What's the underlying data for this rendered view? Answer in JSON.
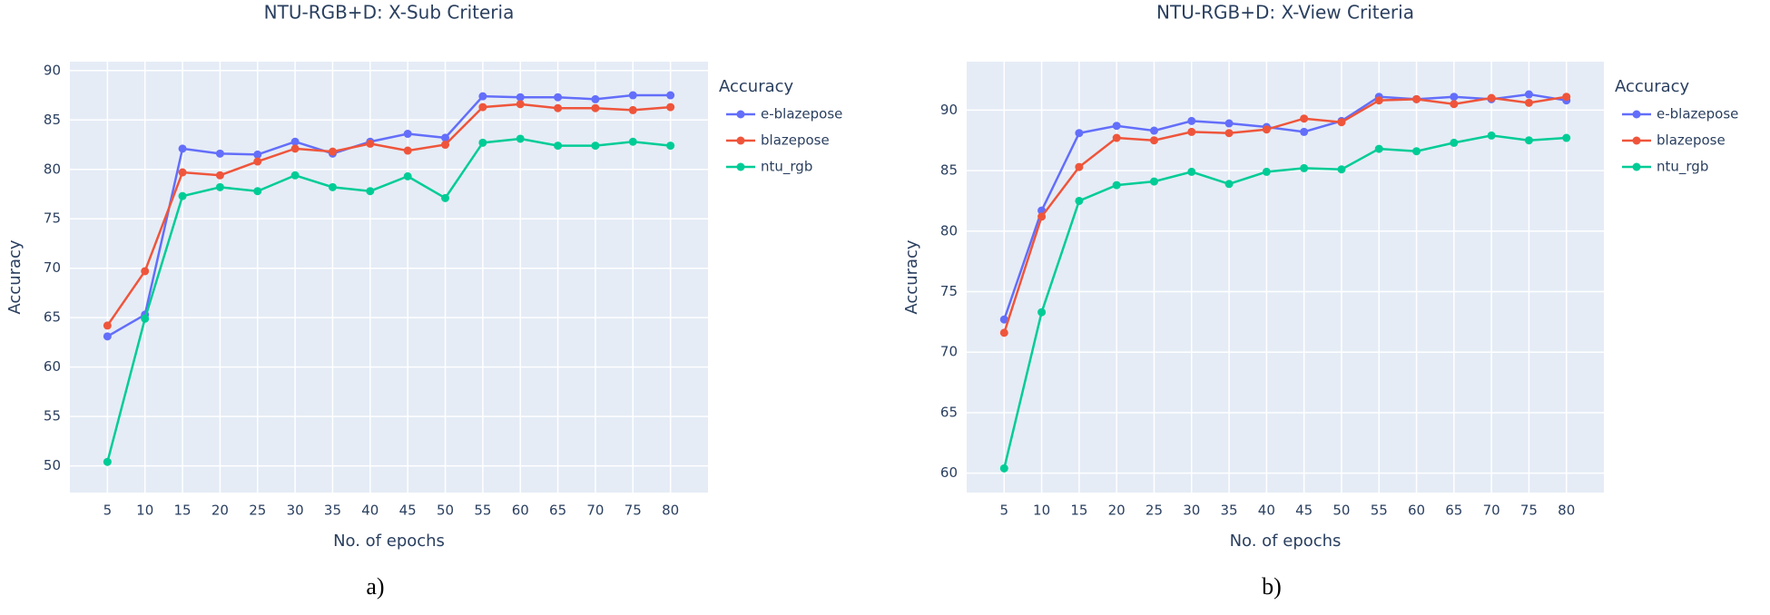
{
  "chart_data": [
    {
      "type": "line",
      "title": "NTU-RGB+D: X-Sub Criteria",
      "xlabel": "No. of epochs",
      "ylabel": "Accuracy",
      "legend_title": "Accuracy",
      "caption": "a)",
      "x": [
        5,
        10,
        15,
        20,
        25,
        30,
        35,
        40,
        45,
        50,
        55,
        60,
        65,
        70,
        75,
        80
      ],
      "xlim": [
        0,
        85
      ],
      "xticks": [
        5,
        10,
        15,
        20,
        25,
        30,
        35,
        40,
        45,
        50,
        55,
        60,
        65,
        70,
        75,
        80
      ],
      "ylim": [
        47.3,
        90.9
      ],
      "yticks": [
        50,
        55,
        60,
        65,
        70,
        75,
        80,
        85,
        90
      ],
      "grid": true,
      "series": [
        {
          "name": "e-blazepose",
          "color": "#636efa",
          "values": [
            63.1,
            65.3,
            82.1,
            81.6,
            81.5,
            82.8,
            81.6,
            82.8,
            83.6,
            83.2,
            87.4,
            87.3,
            87.3,
            87.1,
            87.5,
            87.5
          ]
        },
        {
          "name": "blazepose",
          "color": "#ef553b",
          "values": [
            64.2,
            69.7,
            79.7,
            79.4,
            80.8,
            82.1,
            81.8,
            82.6,
            81.9,
            82.5,
            86.3,
            86.6,
            86.2,
            86.2,
            86.0,
            86.3
          ]
        },
        {
          "name": "ntu_rgb",
          "color": "#00cc96",
          "values": [
            50.4,
            64.9,
            77.3,
            78.2,
            77.8,
            79.4,
            78.2,
            77.8,
            79.3,
            77.1,
            82.7,
            83.1,
            82.4,
            82.4,
            82.8,
            82.4
          ]
        }
      ]
    },
    {
      "type": "line",
      "title": "NTU-RGB+D: X-View Criteria",
      "xlabel": "No. of epochs",
      "ylabel": "Accuracy",
      "legend_title": "Accuracy",
      "caption": "b)",
      "x": [
        5,
        10,
        15,
        20,
        25,
        30,
        35,
        40,
        45,
        50,
        55,
        60,
        65,
        70,
        75,
        80
      ],
      "xlim": [
        0,
        85
      ],
      "xticks": [
        5,
        10,
        15,
        20,
        25,
        30,
        35,
        40,
        45,
        50,
        55,
        60,
        65,
        70,
        75,
        80
      ],
      "ylim": [
        58.4,
        94
      ],
      "yticks": [
        60,
        65,
        70,
        75,
        80,
        85,
        90
      ],
      "grid": true,
      "series": [
        {
          "name": "e-blazepose",
          "color": "#636efa",
          "values": [
            72.7,
            81.7,
            88.1,
            88.7,
            88.3,
            89.1,
            88.9,
            88.6,
            88.2,
            89.1,
            91.1,
            90.9,
            91.1,
            90.9,
            91.3,
            90.8
          ]
        },
        {
          "name": "blazepose",
          "color": "#ef553b",
          "values": [
            71.6,
            81.2,
            85.3,
            87.7,
            87.5,
            88.2,
            88.1,
            88.4,
            89.3,
            89.0,
            90.8,
            90.9,
            90.5,
            91.0,
            90.6,
            91.1
          ]
        },
        {
          "name": "ntu_rgb",
          "color": "#00cc96",
          "values": [
            60.4,
            73.3,
            82.5,
            83.8,
            84.1,
            84.9,
            83.9,
            84.9,
            85.2,
            85.1,
            86.8,
            86.6,
            87.3,
            87.9,
            87.5,
            87.7
          ]
        }
      ]
    }
  ]
}
